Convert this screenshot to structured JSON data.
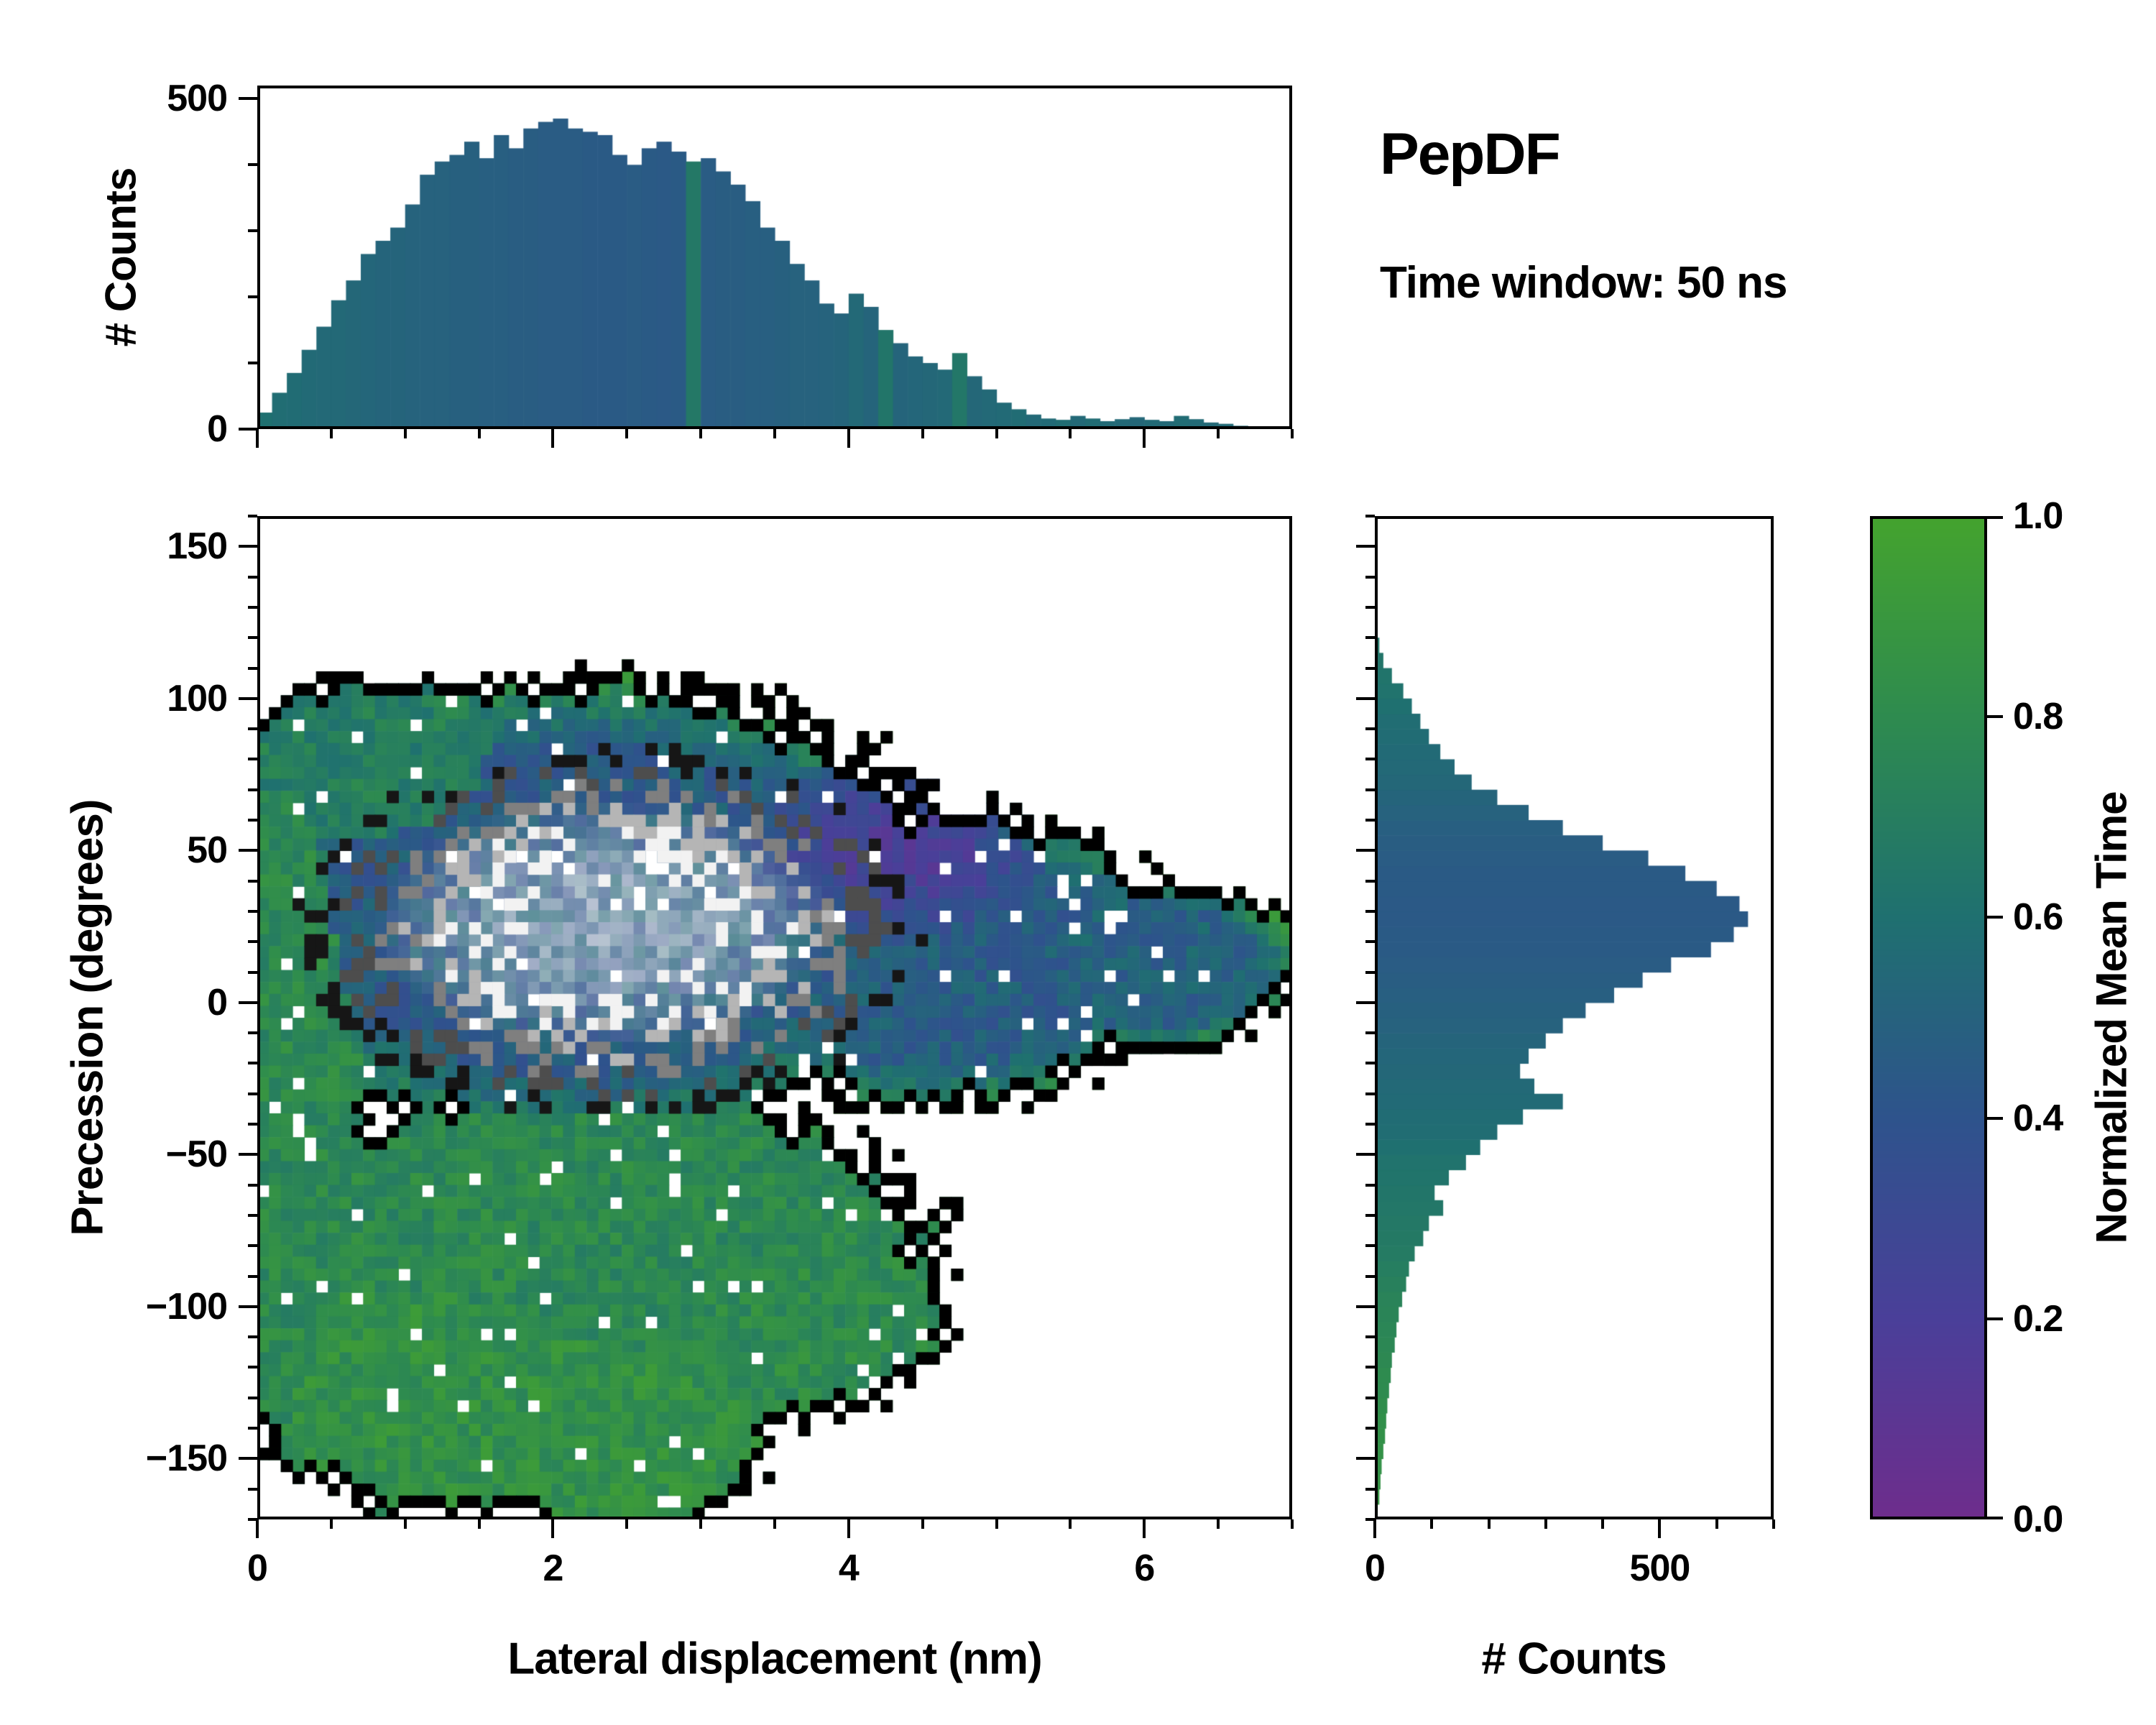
{
  "header": {
    "title": "PepDF",
    "subtitle": "Time window: 50 ns"
  },
  "axes": {
    "main": {
      "xlabel": "Lateral displacement (nm)",
      "ylabel": "Precession (degrees)",
      "xlim": [
        0,
        7
      ],
      "ylim": [
        -170,
        160
      ],
      "xticks": {
        "values": [
          0,
          2,
          4,
          6
        ],
        "labels": [
          "0",
          "2",
          "4",
          "6"
        ],
        "minor_step": 0.5
      },
      "yticks": {
        "values": [
          150,
          100,
          50,
          0,
          -50,
          -100,
          -150
        ],
        "labels": [
          "150",
          "100",
          "50",
          "0",
          "−50",
          "−100",
          "−150"
        ],
        "minor_step": 10
      }
    },
    "top_hist": {
      "ylabel": "# Counts",
      "ylim": [
        0,
        520
      ],
      "yticks": {
        "values": [
          0,
          500
        ],
        "labels": [
          "0",
          "500"
        ],
        "minor_step": 100
      }
    },
    "right_hist": {
      "xlabel": "# Counts",
      "xlim": [
        0,
        700
      ],
      "xticks": {
        "values": [
          0,
          500
        ],
        "labels": [
          "0",
          "500"
        ],
        "minor_step": 100
      }
    },
    "colorbar": {
      "label": "Normalized Mean Time",
      "ticks": {
        "values": [
          0,
          0.2,
          0.4,
          0.6,
          0.8,
          1.0
        ],
        "labels": [
          "0.0",
          "0.2",
          "0.4",
          "0.6",
          "0.8",
          "1.0"
        ]
      }
    }
  },
  "colormap": {
    "stops": [
      [
        0.0,
        "#6e2d8c"
      ],
      [
        0.2,
        "#4a3f99"
      ],
      [
        0.4,
        "#2e538c"
      ],
      [
        0.6,
        "#1f7070"
      ],
      [
        0.8,
        "#2e8b4f"
      ],
      [
        1.0,
        "#44a32e"
      ]
    ]
  },
  "chart_data": [
    {
      "id": "top_histogram",
      "type": "bar",
      "ylabel": "# Counts",
      "x_start": 0,
      "bin_width": 0.1,
      "xlim": [
        0,
        7
      ],
      "ylim": [
        0,
        520
      ],
      "values": [
        25,
        55,
        85,
        120,
        155,
        195,
        225,
        265,
        285,
        305,
        340,
        385,
        405,
        415,
        435,
        410,
        445,
        425,
        455,
        465,
        470,
        455,
        450,
        445,
        415,
        400,
        425,
        435,
        420,
        405,
        410,
        390,
        370,
        345,
        305,
        285,
        250,
        225,
        190,
        175,
        205,
        185,
        150,
        130,
        110,
        100,
        90,
        115,
        80,
        60,
        40,
        30,
        22,
        16,
        14,
        20,
        16,
        12,
        15,
        18,
        14,
        12,
        20,
        15,
        10,
        8,
        5,
        3,
        2,
        1
      ],
      "color_values": [
        0.6,
        0.58,
        0.57,
        0.56,
        0.55,
        0.55,
        0.54,
        0.53,
        0.52,
        0.52,
        0.51,
        0.5,
        0.5,
        0.49,
        0.49,
        0.48,
        0.48,
        0.47,
        0.47,
        0.46,
        0.46,
        0.46,
        0.45,
        0.45,
        0.45,
        0.46,
        0.45,
        0.44,
        0.45,
        0.66,
        0.46,
        0.47,
        0.47,
        0.48,
        0.48,
        0.49,
        0.5,
        0.5,
        0.51,
        0.52,
        0.55,
        0.52,
        0.64,
        0.52,
        0.53,
        0.54,
        0.55,
        0.65,
        0.54,
        0.55,
        0.56,
        0.57,
        0.55,
        0.56,
        0.58,
        0.55,
        0.57,
        0.56,
        0.55,
        0.54,
        0.56,
        0.55,
        0.57,
        0.56,
        0.55,
        0.56,
        0.55,
        0.54,
        0.55,
        0.55
      ]
    },
    {
      "id": "joint_heatmap",
      "type": "heatmap",
      "xlabel": "Lateral displacement (nm)",
      "ylabel": "Precession (degrees)",
      "color_meaning": "Normalized Mean Time",
      "xlim": [
        0,
        7
      ],
      "ylim": [
        -170,
        160
      ],
      "grid": [
        88,
        84
      ],
      "fill_regions": [
        {
          "cx": 2.2,
          "cy": 30,
          "rx": 2.7,
          "ry": 80,
          "v": 0.46
        },
        {
          "cx": 4.6,
          "cy": 15,
          "rx": 1.8,
          "ry": 52,
          "v": 0.47
        },
        {
          "cx": 6.0,
          "cy": 12,
          "rx": 1.15,
          "ry": 30,
          "v": 0.5
        },
        {
          "cx": 0.9,
          "cy": 75,
          "rx": 1.0,
          "ry": 35,
          "v": 0.7
        },
        {
          "cx": 0.25,
          "cy": -30,
          "rx": 0.55,
          "ry": 130,
          "v": 0.78
        },
        {
          "cx": 2.3,
          "cy": -80,
          "rx": 2.4,
          "ry": 55,
          "v": 0.78
        },
        {
          "cx": 3.4,
          "cy": -100,
          "rx": 1.4,
          "ry": 40,
          "v": 0.8
        },
        {
          "cx": 1.4,
          "cy": -122,
          "rx": 1.5,
          "ry": 50,
          "v": 0.84
        },
        {
          "cx": 2.5,
          "cy": -142,
          "rx": 1.0,
          "ry": 34,
          "v": 0.84
        }
      ],
      "purple_region": {
        "cx": 4.35,
        "cy": 52,
        "rx": 1.05,
        "ry": 34
      },
      "light_core": {
        "cx": 2.35,
        "cy": 26,
        "rx": 1.55,
        "ry": 40
      },
      "contour_region": {
        "cx": 2.4,
        "cy": 24,
        "rx": 2.05,
        "ry": 60
      },
      "contour_levels": [
        [
          0.95,
          "#161616"
        ],
        [
          0.74,
          "#4d4d4d"
        ],
        [
          0.55,
          "#7f7f7f"
        ],
        [
          0.38,
          "#b5b5b5"
        ],
        [
          0.22,
          "#f2f2f2"
        ]
      ],
      "boundary_color": "#000000",
      "speck_color": "#ffffff"
    },
    {
      "id": "right_histogram",
      "type": "bar",
      "orientation": "horizontal",
      "xlabel": "# Counts",
      "y_start": -170,
      "bin_width": 5,
      "ylim": [
        -170,
        160
      ],
      "xlim": [
        0,
        700
      ],
      "values": [
        5,
        8,
        10,
        12,
        15,
        18,
        20,
        22,
        25,
        28,
        30,
        35,
        38,
        42,
        48,
        55,
        60,
        70,
        85,
        95,
        120,
        105,
        130,
        160,
        185,
        215,
        260,
        330,
        280,
        255,
        270,
        300,
        330,
        370,
        420,
        470,
        520,
        590,
        630,
        655,
        640,
        600,
        545,
        480,
        400,
        330,
        270,
        215,
        170,
        140,
        115,
        95,
        80,
        65,
        50,
        30,
        15,
        8,
        4,
        2,
        0,
        0,
        0,
        0,
        0,
        0
      ],
      "color_values": [
        0.88,
        0.87,
        0.86,
        0.85,
        0.85,
        0.84,
        0.83,
        0.82,
        0.8,
        0.8,
        0.78,
        0.77,
        0.76,
        0.75,
        0.74,
        0.72,
        0.7,
        0.68,
        0.67,
        0.66,
        0.65,
        0.64,
        0.63,
        0.62,
        0.6,
        0.58,
        0.57,
        0.56,
        0.55,
        0.54,
        0.53,
        0.52,
        0.5,
        0.49,
        0.48,
        0.47,
        0.46,
        0.45,
        0.45,
        0.44,
        0.44,
        0.45,
        0.45,
        0.46,
        0.47,
        0.48,
        0.5,
        0.52,
        0.54,
        0.55,
        0.56,
        0.57,
        0.58,
        0.6,
        0.62,
        0.63,
        0.64,
        0.65,
        0.66,
        0.67,
        0.68,
        0.69,
        0.7,
        0.7,
        0.7,
        0.7
      ]
    }
  ]
}
